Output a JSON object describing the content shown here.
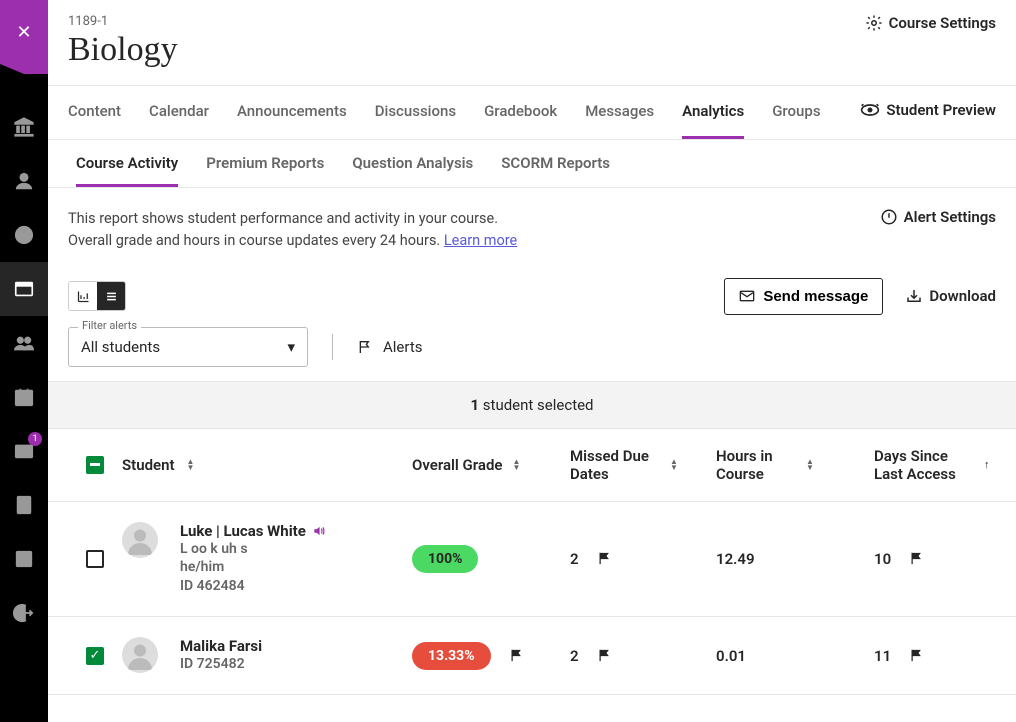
{
  "course": {
    "id": "1189-1",
    "title": "Biology"
  },
  "header": {
    "settings_label": "Course Settings",
    "preview_label": "Student Preview"
  },
  "rail": {
    "badge": "1"
  },
  "tabs_primary": {
    "content": "Content",
    "calendar": "Calendar",
    "announcements": "Announcements",
    "discussions": "Discussions",
    "gradebook": "Gradebook",
    "messages": "Messages",
    "analytics": "Analytics",
    "groups": "Groups"
  },
  "tabs_secondary": {
    "activity": "Course Activity",
    "premium": "Premium Reports",
    "question": "Question Analysis",
    "scorm": "SCORM Reports"
  },
  "desc": {
    "line1": "This report shows student performance and activity in your course.",
    "line2a": "Overall grade and hours in course updates every 24 hours. ",
    "learn_more": "Learn more"
  },
  "alert_settings": "Alert Settings",
  "toolbar": {
    "send": "Send message",
    "download": "Download"
  },
  "filter": {
    "legend": "Filter alerts",
    "value": "All students",
    "alerts_label": "Alerts"
  },
  "selection": {
    "count": "1",
    "suffix": " student selected"
  },
  "columns": {
    "student": "Student",
    "grade": "Overall Grade",
    "missed": "Missed Due Dates",
    "hours": "Hours in Course",
    "days": "Days Since Last Access"
  },
  "rows": [
    {
      "checked": false,
      "name": "Luke | Lucas White",
      "pronunciation": "L oo k uh s",
      "pronouns": "he/him",
      "id_label": "ID 462484",
      "grade": "100%",
      "grade_color": "green",
      "grade_flag": false,
      "missed": "2",
      "missed_flag": true,
      "hours": "12.49",
      "days": "10",
      "days_flag": true,
      "has_extra": true
    },
    {
      "checked": true,
      "name": "Malika Farsi",
      "id_label": "ID 725482",
      "grade": "13.33%",
      "grade_color": "red",
      "grade_flag": true,
      "missed": "2",
      "missed_flag": true,
      "hours": "0.01",
      "days": "11",
      "days_flag": true,
      "has_extra": false
    }
  ],
  "colors": {
    "accent": "#9b2fae",
    "green": "#4bd964",
    "red": "#e64d3c",
    "check": "#008a3a"
  }
}
